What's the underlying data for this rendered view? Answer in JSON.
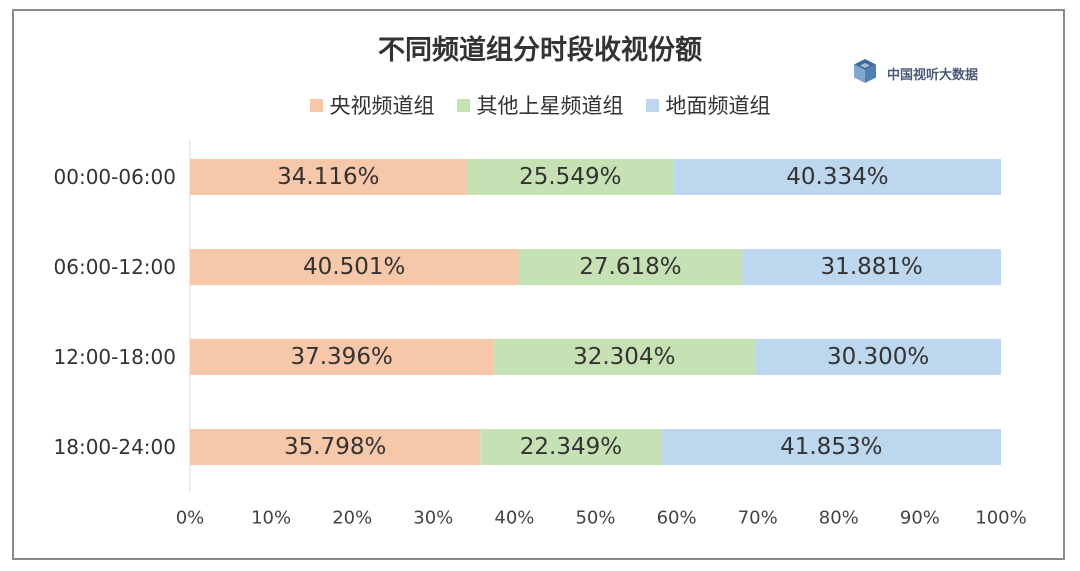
{
  "brand": {
    "text": "中国视听大数据",
    "icon": "cube-logo-icon"
  },
  "colors": {
    "frame": "#8a8a8a",
    "cctv": "#f6c7a8",
    "satellite": "#c6e2b4",
    "terrestrial": "#bdd7ee",
    "axis": "#d9d9d9"
  },
  "chart_data": {
    "type": "bar",
    "orientation": "horizontal",
    "stacked": true,
    "percent_stacked": true,
    "title": "不同频道组分时段收视份额",
    "categories": [
      "00:00-06:00",
      "06:00-12:00",
      "12:00-18:00",
      "18:00-24:00"
    ],
    "series": [
      {
        "name": "央视频道组",
        "values": [
          34.116,
          40.501,
          37.396,
          35.798
        ],
        "labels": [
          "34.116%",
          "40.501%",
          "37.396%",
          "35.798%"
        ]
      },
      {
        "name": "其他上星频道组",
        "values": [
          25.549,
          27.618,
          32.304,
          22.349
        ],
        "labels": [
          "25.549%",
          "27.618%",
          "32.304%",
          "22.349%"
        ]
      },
      {
        "name": "地面频道组",
        "values": [
          40.334,
          31.881,
          30.3,
          41.853
        ],
        "labels": [
          "40.334%",
          "31.881%",
          "30.300%",
          "41.853%"
        ]
      }
    ],
    "xlim": [
      0,
      100
    ],
    "x_ticks": [
      "0%",
      "10%",
      "20%",
      "30%",
      "40%",
      "50%",
      "60%",
      "70%",
      "80%",
      "90%",
      "100%"
    ],
    "legend_position": "top",
    "grid": false
  }
}
